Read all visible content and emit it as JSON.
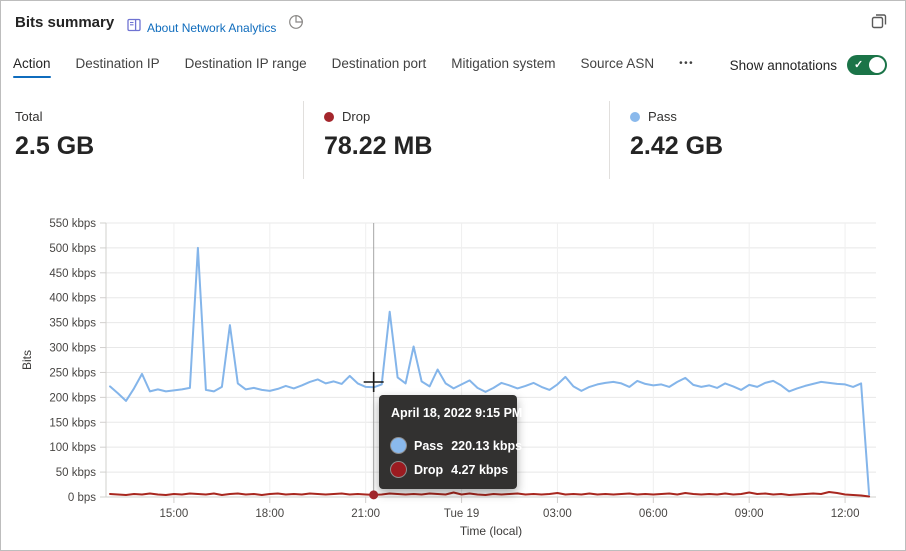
{
  "header": {
    "title": "Bits summary",
    "about_link": "About Network Analytics"
  },
  "tabs": {
    "items": [
      "Action",
      "Destination IP",
      "Destination IP range",
      "Destination port",
      "Mitigation system",
      "Source ASN"
    ],
    "more": "•••",
    "selected": "Action"
  },
  "annotations_toggle": {
    "label": "Show annotations",
    "state": "on",
    "on_color": "#1b7448"
  },
  "stats": {
    "items": [
      {
        "label": "Total",
        "value": "2.5 GB",
        "dot_color": null
      },
      {
        "label": "Drop",
        "value": "78.22 MB",
        "dot_color": "#a4262c"
      },
      {
        "label": "Pass",
        "value": "2.42 GB",
        "dot_color": "#8ab9ec"
      }
    ]
  },
  "tooltip": {
    "title": "April 18, 2022 9:15 PM",
    "rows": [
      {
        "label": "Pass",
        "value": "220.13 kbps",
        "color": "#8ab9ec"
      },
      {
        "label": "Drop",
        "value": "4.27 kbps",
        "color": "#9b1b20"
      }
    ]
  },
  "chart_data": {
    "type": "line",
    "title": "Bits summary",
    "xlabel": "Time (local)",
    "ylabel": "Bits",
    "y_unit": "kbps",
    "ylim": [
      0,
      550
    ],
    "y_tick_step": 50,
    "y_ticks": [
      "0 bps",
      "50 kbps",
      "100 kbps",
      "150 kbps",
      "200 kbps",
      "250 kbps",
      "300 kbps",
      "350 kbps",
      "400 kbps",
      "450 kbps",
      "500 kbps",
      "550 kbps"
    ],
    "x_start": "2022-04-18 13:00",
    "x_step_minutes": 15,
    "x_tick_labels": [
      {
        "index": 8,
        "label": "15:00"
      },
      {
        "index": 20,
        "label": "18:00"
      },
      {
        "index": 32,
        "label": "21:00"
      },
      {
        "index": 44,
        "label": "Tue 19"
      },
      {
        "index": 56,
        "label": "03:00"
      },
      {
        "index": 68,
        "label": "06:00"
      },
      {
        "index": 80,
        "label": "09:00"
      },
      {
        "index": 92,
        "label": "12:00"
      }
    ],
    "grid": true,
    "legend_position": "none",
    "hover_index": 33,
    "series": [
      {
        "name": "Pass",
        "color": "#84b5ea",
        "values": [
          222,
          208,
          193,
          218,
          247,
          212,
          216,
          212,
          214,
          216,
          219,
          500,
          215,
          212,
          221,
          345,
          228,
          216,
          219,
          215,
          213,
          217,
          223,
          218,
          224,
          231,
          236,
          228,
          232,
          227,
          243,
          228,
          221,
          220.13,
          226,
          372,
          240,
          228,
          302,
          232,
          222,
          256,
          228,
          218,
          226,
          234,
          219,
          211,
          219,
          229,
          224,
          218,
          223,
          229,
          221,
          215,
          226,
          241,
          222,
          213,
          221,
          226,
          229,
          231,
          228,
          221,
          233,
          227,
          224,
          226,
          221,
          231,
          239,
          225,
          221,
          224,
          219,
          228,
          222,
          215,
          225,
          221,
          229,
          233,
          224,
          212,
          218,
          223,
          227,
          231,
          229,
          227,
          226,
          221,
          228,
          5
        ]
      },
      {
        "name": "Drop",
        "color": "#a8271f",
        "values": [
          6,
          5,
          4,
          6,
          5,
          7,
          5,
          4,
          6,
          5,
          7,
          6,
          5,
          7,
          4,
          6,
          7,
          5,
          6,
          4,
          6,
          7,
          5,
          6,
          5,
          7,
          6,
          5,
          6,
          7,
          5,
          6,
          5,
          4.27,
          5,
          7,
          6,
          5,
          6,
          5,
          7,
          6,
          5,
          9,
          5,
          7,
          5,
          4,
          6,
          5,
          6,
          7,
          5,
          6,
          5,
          6,
          8,
          5,
          6,
          5,
          7,
          5,
          6,
          5,
          6,
          7,
          5,
          6,
          5,
          6,
          7,
          5,
          8,
          6,
          5,
          6,
          5,
          7,
          5,
          6,
          9,
          6,
          7,
          5,
          6,
          4,
          5,
          6,
          7,
          6,
          10,
          8,
          5,
          4,
          3,
          1
        ]
      }
    ]
  }
}
